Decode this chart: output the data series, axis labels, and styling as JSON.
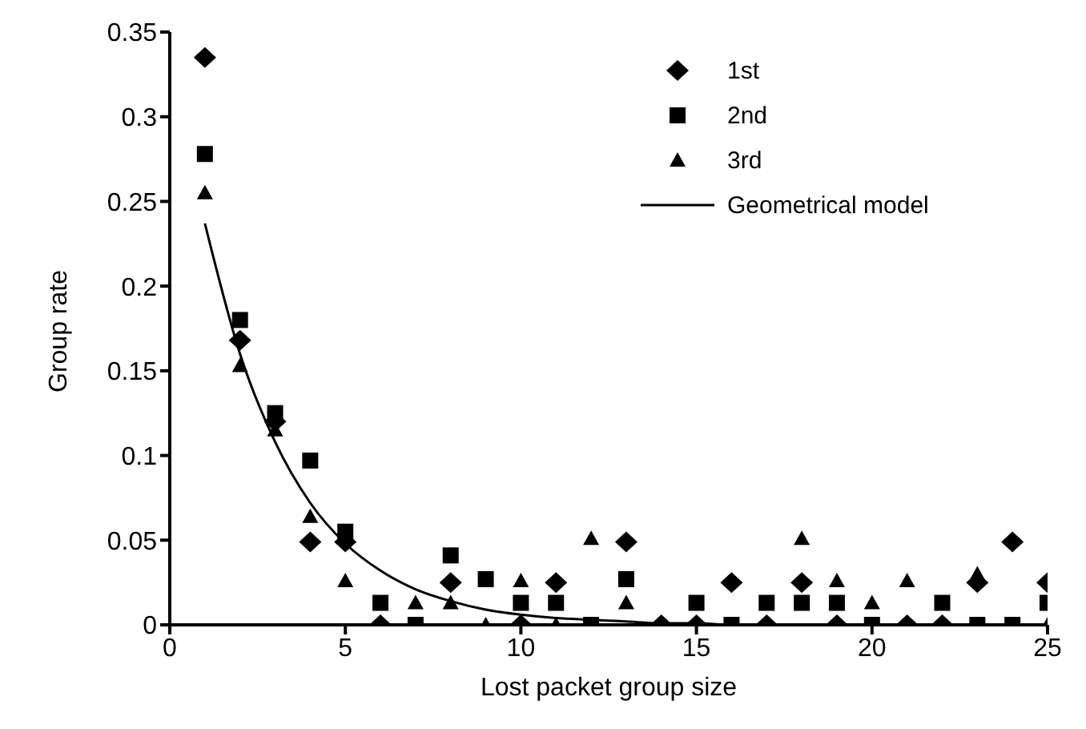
{
  "chart_data": {
    "type": "scatter",
    "xlabel": "Lost packet group size",
    "ylabel": "Group rate",
    "x": [
      1,
      2,
      3,
      4,
      5,
      6,
      7,
      8,
      9,
      10,
      11,
      12,
      13,
      14,
      15,
      16,
      17,
      18,
      19,
      20,
      21,
      22,
      23,
      24,
      25
    ],
    "series": [
      {
        "name": "1st",
        "color": "#000000",
        "marker": "diamond",
        "values": [
          0.335,
          0.168,
          0.12,
          0.049,
          0.049,
          0,
          null,
          0.025,
          null,
          0,
          0.025,
          null,
          0.049,
          0,
          0,
          0.025,
          0,
          0.025,
          0,
          null,
          0,
          0,
          0.025,
          0.049,
          0.025
        ]
      },
      {
        "name": "2nd",
        "color": "#000000",
        "marker": "square",
        "values": [
          0.278,
          0.18,
          0.125,
          0.097,
          0.055,
          0.013,
          0,
          0.041,
          0.027,
          0.013,
          0.013,
          0,
          0.027,
          null,
          0.013,
          0,
          0.013,
          0.013,
          0.013,
          0,
          null,
          0.013,
          0,
          0,
          0.013
        ]
      },
      {
        "name": "3rd",
        "color": "#000000",
        "marker": "triangle",
        "values": [
          0.255,
          0.153,
          0.115,
          0.064,
          0.026,
          null,
          0.013,
          0.013,
          0,
          0.026,
          0,
          0.051,
          0.013,
          null,
          null,
          null,
          null,
          0.051,
          0.026,
          0.013,
          0.026,
          null,
          0.03,
          null,
          0
        ]
      },
      {
        "name": "Geometrical model",
        "type": "line",
        "color": "#000000",
        "marker": "none",
        "line_style": "solid",
        "values": [
          0.237,
          0.16,
          0.108,
          0.072,
          0.048,
          0.032,
          0.021,
          0.014,
          0.009,
          0.006,
          0.004,
          0.003,
          0.002,
          0.001,
          0.001,
          0,
          0,
          0,
          0,
          0,
          0,
          0,
          0,
          0,
          0
        ]
      }
    ],
    "xlim": [
      0,
      25
    ],
    "xticks": [
      0,
      5,
      10,
      15,
      20,
      25
    ],
    "ylim": [
      0,
      0.35
    ],
    "yticks": [
      0,
      0.05,
      0.1,
      0.15,
      0.2,
      0.25,
      0.3,
      0.35
    ],
    "grid": false,
    "legend": "top right"
  }
}
